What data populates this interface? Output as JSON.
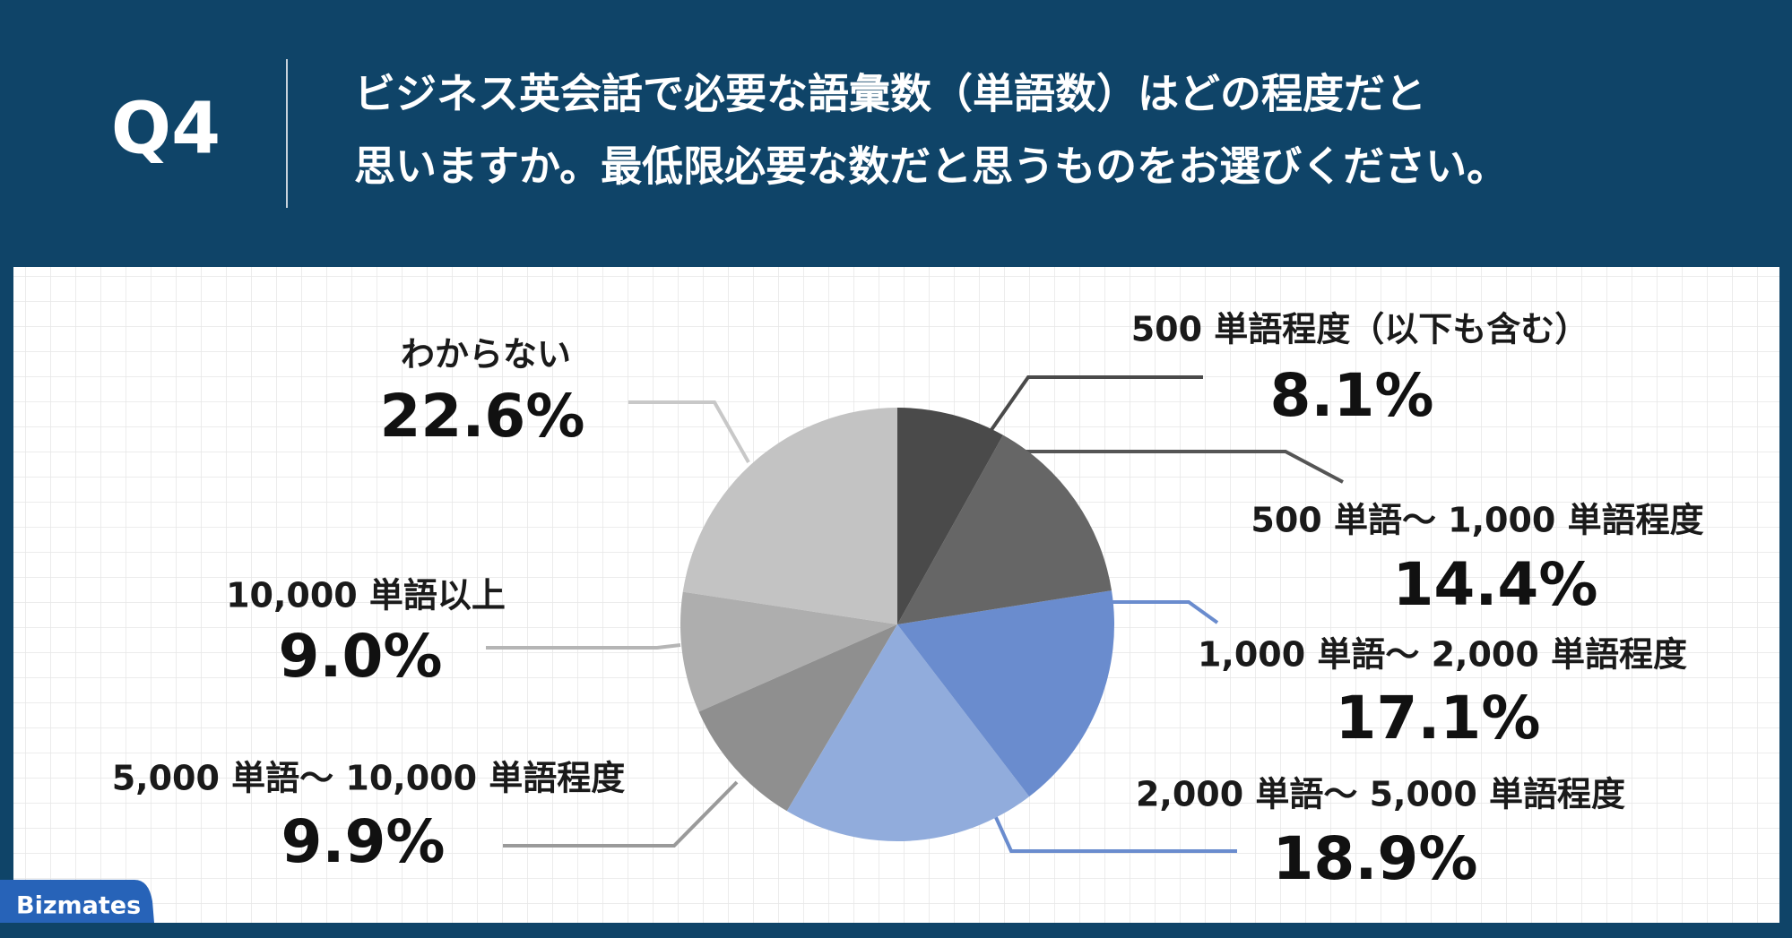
{
  "header": {
    "label": "Q4",
    "title": [
      "ビジネス英会話で必要な語彙数（単語数）はどの程度だと",
      "思いますか。最低限必要な数だと思うものをお選びください。"
    ]
  },
  "brand": "Bizmates",
  "chart_data": {
    "type": "pie",
    "categories": [
      "500 単語程度（以下も含む）",
      "500 単語〜 1,000 単語程度",
      "1,000 単語〜 2,000 単語程度",
      "2,000 単語〜 5,000 単語程度",
      "5,000 単語〜 10,000 単語程度",
      "10,000 単語以上",
      "わからない"
    ],
    "values": [
      8.1,
      14.4,
      17.1,
      18.9,
      9.9,
      9.0,
      22.6
    ],
    "value_labels": [
      "8.1%",
      "14.4%",
      "17.1%",
      "18.9%",
      "9.9%",
      "9.0%",
      "22.6%"
    ],
    "colors": [
      "#4a4a4a",
      "#666666",
      "#6a8cce",
      "#91acdc",
      "#8f8f8f",
      "#aeaeae",
      "#c3c3c3"
    ]
  }
}
